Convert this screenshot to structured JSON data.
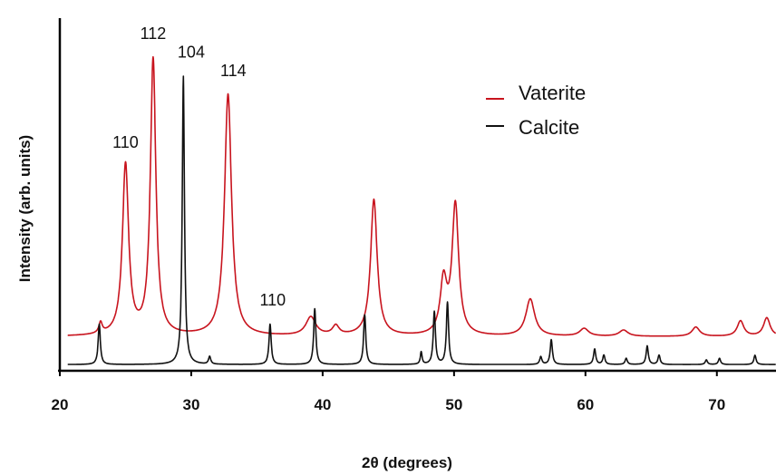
{
  "chart_data": {
    "type": "line",
    "xlabel": "2θ (degrees)",
    "ylabel": "Intensity (arb. units)",
    "xlim": [
      20,
      74.5
    ],
    "ylim": [
      0,
      100
    ],
    "xticks": [
      20,
      30,
      40,
      50,
      60,
      70
    ],
    "grid": false,
    "legend_position": "top-right",
    "series": [
      {
        "name": "Vaterite",
        "color": "#c8141e",
        "baseline": 11,
        "baseline_end": 11,
        "peaks": [
          {
            "x": 23.1,
            "y": 14.5,
            "w": 0.15
          },
          {
            "x": 25.0,
            "y": 66,
            "w": 0.28
          },
          {
            "x": 27.1,
            "y": 100,
            "w": 0.25
          },
          {
            "x": 32.8,
            "y": 89,
            "w": 0.32
          },
          {
            "x": 39.1,
            "y": 17,
            "w": 0.45
          },
          {
            "x": 41.0,
            "y": 14,
            "w": 0.3
          },
          {
            "x": 43.9,
            "y": 55,
            "w": 0.3
          },
          {
            "x": 49.2,
            "y": 28,
            "w": 0.3
          },
          {
            "x": 50.1,
            "y": 53,
            "w": 0.3
          },
          {
            "x": 55.8,
            "y": 23,
            "w": 0.4
          },
          {
            "x": 59.9,
            "y": 13.5,
            "w": 0.4
          },
          {
            "x": 62.9,
            "y": 13,
            "w": 0.4
          },
          {
            "x": 68.4,
            "y": 14,
            "w": 0.35
          },
          {
            "x": 71.8,
            "y": 16,
            "w": 0.3
          },
          {
            "x": 73.8,
            "y": 17,
            "w": 0.3
          }
        ]
      },
      {
        "name": "Calcite",
        "color": "#111111",
        "baseline": 2,
        "baseline_end": 2,
        "peaks": [
          {
            "x": 23.0,
            "y": 15,
            "w": 0.1
          },
          {
            "x": 29.4,
            "y": 95,
            "w": 0.1
          },
          {
            "x": 31.4,
            "y": 4.5,
            "w": 0.1
          },
          {
            "x": 36.0,
            "y": 15,
            "w": 0.1
          },
          {
            "x": 39.4,
            "y": 20,
            "w": 0.1
          },
          {
            "x": 43.2,
            "y": 18,
            "w": 0.1
          },
          {
            "x": 47.5,
            "y": 6,
            "w": 0.08
          },
          {
            "x": 48.5,
            "y": 19,
            "w": 0.1
          },
          {
            "x": 49.5,
            "y": 22,
            "w": 0.1
          },
          {
            "x": 56.6,
            "y": 4.5,
            "w": 0.1
          },
          {
            "x": 57.4,
            "y": 10,
            "w": 0.1
          },
          {
            "x": 60.7,
            "y": 7,
            "w": 0.1
          },
          {
            "x": 61.4,
            "y": 5,
            "w": 0.1
          },
          {
            "x": 63.1,
            "y": 4,
            "w": 0.1
          },
          {
            "x": 64.7,
            "y": 8,
            "w": 0.1
          },
          {
            "x": 65.6,
            "y": 5,
            "w": 0.1
          },
          {
            "x": 69.2,
            "y": 3.5,
            "w": 0.1
          },
          {
            "x": 70.2,
            "y": 4,
            "w": 0.1
          },
          {
            "x": 72.9,
            "y": 5,
            "w": 0.1
          }
        ]
      }
    ],
    "annotations": [
      {
        "text": "110",
        "x": 25.0,
        "y": 72
      },
      {
        "text": "112",
        "x": 27.1,
        "y": 107
      },
      {
        "text": "104",
        "x": 30.0,
        "y": 101
      },
      {
        "text": "114",
        "x": 33.2,
        "y": 95
      },
      {
        "text": "110",
        "x": 36.2,
        "y": 21
      }
    ]
  }
}
